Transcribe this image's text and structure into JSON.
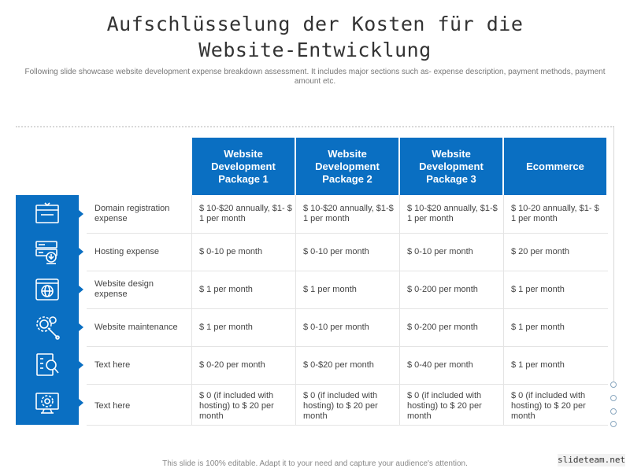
{
  "title_line1": "Aufschlüsselung der Kosten für die",
  "title_line2": "Website-Entwicklung",
  "subtitle": "Following slide showcase website development expense breakdown assessment. It includes major sections such as- expense description, payment methods, payment amount etc.",
  "table": {
    "headers": [
      "Website Development Package 1",
      "Website Development Package 2",
      "Website Development Package 3",
      "Ecommerce"
    ],
    "rows": [
      {
        "icon": "browser-window-icon",
        "label": "Domain registration expense",
        "cells": [
          "$ 10-$20 annually, $1- $ 1 per month",
          "$ 10-$20 annually, $1-$ 1 per month",
          "$ 10-$20 annually, $1-$ 1 per month",
          "$ 10-20 annually, $1- $ 1 per month"
        ]
      },
      {
        "icon": "server-download-icon",
        "label": "Hosting expense",
        "cells": [
          "$ 0-10 pe month",
          "$ 0-10 per month",
          "$ 0-10 per month",
          "$ 20 per month"
        ]
      },
      {
        "icon": "web-globe-icon",
        "label": "Website design expense",
        "cells": [
          "$ 1 per month",
          "$ 1 per month",
          "$ 0-200 per month",
          "$ 1 per month"
        ]
      },
      {
        "icon": "gear-wrench-icon",
        "label": "Website maintenance",
        "cells": [
          "$ 1 per month",
          "$ 0-10 per month",
          "$ 0-200 per month",
          "$ 1 per month"
        ]
      },
      {
        "icon": "document-search-icon",
        "label": "Text here",
        "cells": [
          "$ 0-20 per month",
          "$ 0-$20 per month",
          "$ 0-40 per month",
          "$ 1 per month"
        ]
      },
      {
        "icon": "monitor-gear-icon",
        "label": "Text here",
        "cells": [
          "$ 0 (if included with hosting) to $ 20 per month",
          "$ 0 (if included with hosting) to $ 20 per month",
          "$ 0 (if included with hosting) to $ 20 per month",
          "$ 0 (if included with hosting) to $ 20 per month"
        ]
      }
    ]
  },
  "footer": "This slide is 100% editable. Adapt it to your need and capture your audience's attention.",
  "watermark": "slideteam.net",
  "colors": {
    "accent": "#0a6fc2",
    "text": "#444444",
    "grid": "#e4e4e4"
  }
}
